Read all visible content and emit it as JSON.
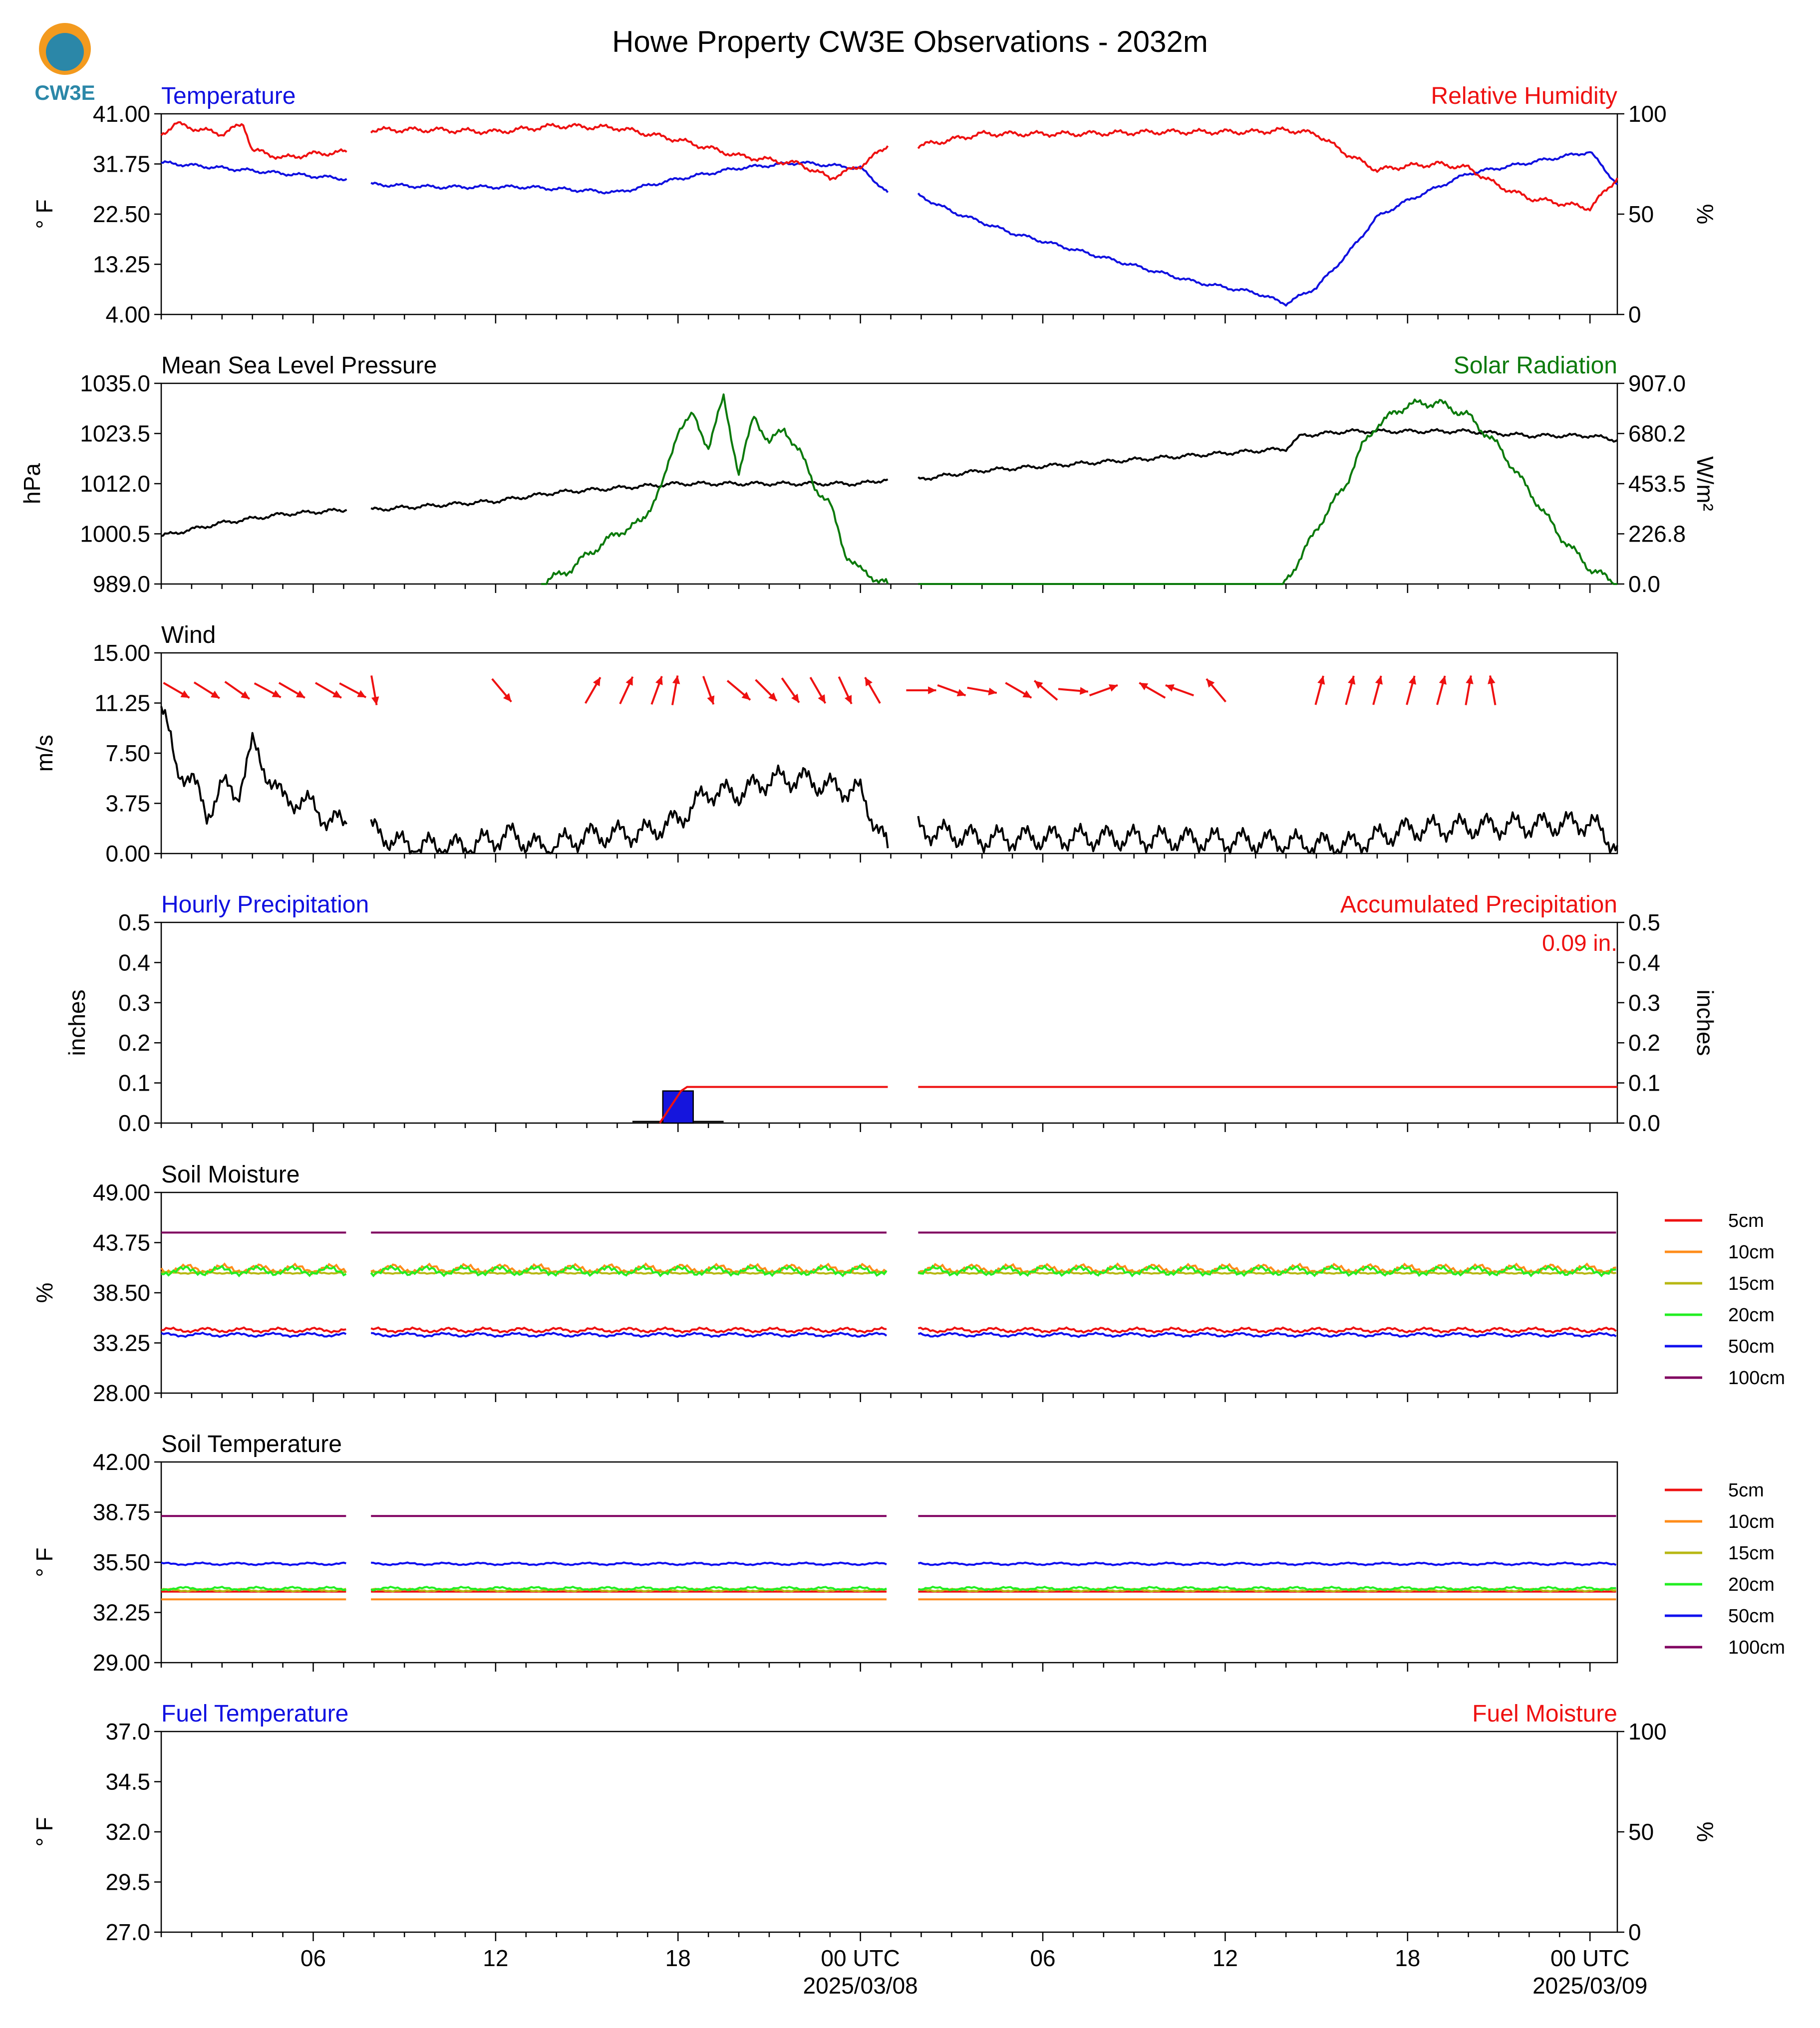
{
  "figure": {
    "title": "Howe Property CW3E Observations - 2032m",
    "logo_text": "CW3E",
    "colors": {
      "blue": "#1010e0",
      "red": "#ee1111",
      "green": "#0b7a0b",
      "black": "#000000",
      "logo_orange": "#f39a1e",
      "logo_teal": "#2b87a8"
    }
  },
  "x_axis": {
    "ticks": [
      {
        "hour": 6,
        "label": "06"
      },
      {
        "hour": 12,
        "label": "12"
      },
      {
        "hour": 18,
        "label": "18"
      },
      {
        "hour": 24,
        "label": "00 UTC",
        "date": "2025/03/08"
      },
      {
        "hour": 30,
        "label": "06"
      },
      {
        "hour": 36,
        "label": "12"
      },
      {
        "hour": 42,
        "label": "18"
      },
      {
        "hour": 48,
        "label": "00 UTC",
        "date": "2025/03/09"
      }
    ],
    "range_hours": [
      1,
      48.9
    ],
    "gaps_hours": [
      [
        7.1,
        7.9
      ],
      [
        24.9,
        25.9
      ]
    ]
  },
  "soil_legend": {
    "labels": [
      "5cm",
      "10cm",
      "15cm",
      "20cm",
      "50cm",
      "100cm"
    ],
    "colors": [
      "#ee1111",
      "#ff8c1a",
      "#b8b814",
      "#22ee22",
      "#1010ee",
      "#800060"
    ]
  },
  "chart_data": [
    {
      "type": "line",
      "title_left": "Temperature",
      "title_right": "Relative Humidity",
      "ylabel_left": "° F",
      "ylabel_right": "%",
      "ylim": [
        4,
        41
      ],
      "yticks_left": [
        "41.00",
        "31.75",
        "22.50",
        "13.25",
        "4.00"
      ],
      "ylim_right": [
        0,
        100
      ],
      "yticks_right": [
        "100",
        "50",
        "0"
      ],
      "series": [
        {
          "axis": "left",
          "color": "#1010e0",
          "x": [
            1,
            2,
            3,
            4,
            5,
            6,
            7.1,
            7.9,
            10,
            13,
            16,
            18,
            20,
            22,
            24,
            24.9,
            25.9,
            27,
            29,
            31,
            33,
            35,
            37,
            38,
            39,
            40,
            41,
            42,
            44,
            46,
            48,
            48.9
          ],
          "values": [
            32,
            31.5,
            31,
            30.5,
            30,
            29.5,
            29,
            28,
            27.5,
            27.5,
            26.5,
            29,
            31,
            32,
            31,
            26.5,
            26,
            23,
            19,
            16,
            13,
            10,
            8,
            6,
            9,
            15,
            22,
            25,
            30,
            32,
            34,
            28
          ]
        },
        {
          "axis": "right",
          "color": "#ee1111",
          "x": [
            1,
            1.5,
            2,
            3,
            3.7,
            4,
            5,
            6,
            7.1,
            7.9,
            10,
            12,
            14,
            16,
            18,
            20,
            22,
            23,
            24,
            24.9,
            25.9,
            28,
            31,
            34,
            37,
            38,
            39,
            40,
            41,
            42,
            43,
            44,
            45,
            46,
            48,
            48.9
          ],
          "values": [
            90,
            95,
            93,
            90,
            95,
            82,
            78,
            80,
            81,
            92,
            92,
            91,
            94,
            93,
            87,
            79,
            75,
            68,
            74,
            84,
            84,
            90,
            90,
            91,
            91,
            92,
            90,
            80,
            72,
            74,
            75,
            73,
            64,
            58,
            53,
            68
          ]
        }
      ]
    },
    {
      "type": "line",
      "title_left": "Mean Sea Level Pressure",
      "title_right": "Solar Radiation",
      "ylabel_left": "hPa",
      "ylabel_right": "W/m²",
      "ylim": [
        989,
        1035
      ],
      "yticks_left": [
        "1035.0",
        "1023.5",
        "1012.0",
        "1000.5",
        "989.0"
      ],
      "ylim_right": [
        0,
        907
      ],
      "yticks_right": [
        "907.0",
        "680.2",
        "453.5",
        "226.8",
        "0.0"
      ],
      "series": [
        {
          "axis": "left",
          "color": "#000000",
          "x": [
            1,
            3,
            5,
            7.1,
            7.9,
            10,
            12,
            14,
            16,
            18,
            20,
            22,
            24,
            24.9,
            25.9,
            28,
            30,
            32,
            34,
            36,
            38,
            38.5,
            40,
            42,
            44,
            46,
            48,
            48.9
          ],
          "values": [
            1000,
            1003,
            1005,
            1006,
            1006,
            1007,
            1008,
            1010,
            1011,
            1012,
            1012,
            1012,
            1012,
            1013,
            1013,
            1015,
            1016,
            1017,
            1018,
            1019,
            1020,
            1023,
            1024,
            1024,
            1024,
            1023,
            1023,
            1022
          ]
        },
        {
          "axis": "right",
          "color": "#0b7a0b",
          "x": [
            1,
            13.5,
            14.5,
            15,
            16,
            16.8,
            17.5,
            18,
            18.5,
            19,
            19.5,
            20,
            20.5,
            21,
            21.5,
            22,
            22.5,
            23,
            23.5,
            24,
            24.9,
            25.9,
            37.9,
            38.5,
            39,
            40,
            40.5,
            41,
            42,
            43,
            44,
            45,
            46,
            47,
            48,
            48.9
          ],
          "values": [
            0,
            0,
            70,
            130,
            230,
            280,
            450,
            700,
            760,
            620,
            840,
            500,
            760,
            640,
            700,
            600,
            440,
            360,
            140,
            60,
            0,
            0,
            0,
            120,
            250,
            460,
            620,
            720,
            810,
            820,
            760,
            620,
            420,
            220,
            70,
            0
          ]
        }
      ]
    },
    {
      "type": "line",
      "title_left": "Wind",
      "ylabel_left": "m/s",
      "ylim": [
        0,
        15
      ],
      "yticks_left": [
        "15.00",
        "11.25",
        "7.50",
        "3.75",
        "0.00"
      ],
      "series": [
        {
          "color": "#000000",
          "x": [
            1,
            1.5,
            2,
            2.5,
            3,
            3.5,
            4,
            4.5,
            5,
            5.5,
            6,
            6.5,
            7.1,
            7.9,
            9,
            11,
            12.5,
            13.5,
            15,
            17,
            18,
            19,
            20,
            21,
            22,
            23,
            24,
            24.9,
            25.9,
            28,
            31,
            34,
            37,
            40,
            42,
            44,
            46,
            48,
            48.9
          ],
          "values": [
            11,
            6.5,
            5.5,
            3,
            5,
            4.5,
            8,
            6,
            4,
            4,
            3.5,
            2.5,
            2.2,
            1.8,
            0.6,
            0.5,
            1.4,
            0.4,
            1.3,
            1.6,
            2.5,
            4.6,
            4.5,
            5.5,
            5.6,
            5.0,
            4.6,
            0.4,
            1.8,
            1.1,
            1.2,
            1.1,
            0.9,
            0.6,
            1.8,
            2.0,
            2.1,
            2.3,
            0.6
          ]
        }
      ],
      "wind_arrows": {
        "color": "#ee1111",
        "x": [
          1.5,
          2.5,
          3.5,
          4.5,
          5.3,
          6.5,
          7.3,
          8,
          12.2,
          15.2,
          16.3,
          17.3,
          17.9,
          19,
          20,
          20.9,
          21.7,
          22.6,
          23.5,
          24.4,
          26,
          27,
          28,
          29.2,
          30.1,
          31,
          32,
          33.6,
          34.5,
          35.7,
          39.1,
          40.1,
          41,
          42.1,
          43.1,
          44,
          44.8
        ],
        "dir_deg": [
          120,
          122,
          125,
          118,
          120,
          120,
          118,
          170,
          140,
          30,
          25,
          20,
          10,
          160,
          130,
          135,
          145,
          150,
          155,
          330,
          90,
          110,
          100,
          120,
          310,
          95,
          70,
          300,
          290,
          320,
          15,
          15,
          15,
          15,
          15,
          10,
          350
        ]
      }
    },
    {
      "type": "bar",
      "title_left": "Hourly Precipitation",
      "title_right": "Accumulated Precipitation",
      "total_label": "0.09 in.",
      "ylabel_left": "inches",
      "ylabel_right": "inches",
      "ylim": [
        0,
        0.5
      ],
      "yticks_left": [
        "0.5",
        "0.4",
        "0.3",
        "0.2",
        "0.1",
        "0.0"
      ],
      "yticks_right": [
        "0.5",
        "0.4",
        "0.3",
        "0.2",
        "0.1",
        "0.0"
      ],
      "series": [
        {
          "name": "Hourly Precipitation",
          "color": "#1515dd",
          "x": [
            17.5
          ],
          "values": [
            0.08
          ]
        },
        {
          "name": "Accumulated Precipitation",
          "color": "#ee1111",
          "x": [
            1,
            17.4,
            18.1,
            18.3,
            24.9,
            25.9,
            48.9
          ],
          "values": [
            0,
            0,
            0.08,
            0.09,
            0.09,
            0.09,
            0.09
          ]
        }
      ]
    },
    {
      "type": "line",
      "title_left": "Soil Moisture",
      "ylabel_left": "%",
      "ylim": [
        28,
        49
      ],
      "yticks_left": [
        "49.00",
        "43.75",
        "38.50",
        "33.25",
        "28.00"
      ],
      "series": [
        {
          "name": "5cm",
          "color": "#ee1111",
          "values": [
            34.6
          ]
        },
        {
          "name": "10cm",
          "color": "#ff8c1a",
          "values": [
            41.0
          ]
        },
        {
          "name": "15cm",
          "color": "#b8b814",
          "values": [
            40.6
          ]
        },
        {
          "name": "20cm",
          "color": "#22ee22",
          "values": [
            40.8
          ]
        },
        {
          "name": "50cm",
          "color": "#1010ee",
          "values": [
            34.1
          ]
        },
        {
          "name": "100cm",
          "color": "#800060",
          "values": [
            44.8
          ]
        }
      ]
    },
    {
      "type": "line",
      "title_left": "Soil Temperature",
      "ylabel_left": "° F",
      "ylim": [
        29,
        42
      ],
      "yticks_left": [
        "42.00",
        "38.75",
        "35.50",
        "32.25",
        "29.00"
      ],
      "series": [
        {
          "name": "5cm",
          "color": "#ee1111",
          "values": [
            33.6
          ]
        },
        {
          "name": "10cm",
          "color": "#ff8c1a",
          "values": [
            33.1
          ]
        },
        {
          "name": "15cm",
          "color": "#b8b814",
          "values": [
            33.7
          ]
        },
        {
          "name": "20cm",
          "color": "#22ee22",
          "values": [
            33.8
          ]
        },
        {
          "name": "50cm",
          "color": "#1010ee",
          "values": [
            35.4
          ]
        },
        {
          "name": "100cm",
          "color": "#800060",
          "values": [
            38.5
          ]
        }
      ]
    },
    {
      "type": "line",
      "title_left": "Fuel Temperature",
      "title_right": "Fuel Moisture",
      "ylabel_left": "° F",
      "ylabel_right": "%",
      "ylim": [
        27,
        37
      ],
      "yticks_left": [
        "37.0",
        "34.5",
        "32.0",
        "29.5",
        "27.0"
      ],
      "ylim_right": [
        0,
        100
      ],
      "yticks_right": [
        "100",
        "50",
        "0"
      ],
      "series": []
    }
  ]
}
